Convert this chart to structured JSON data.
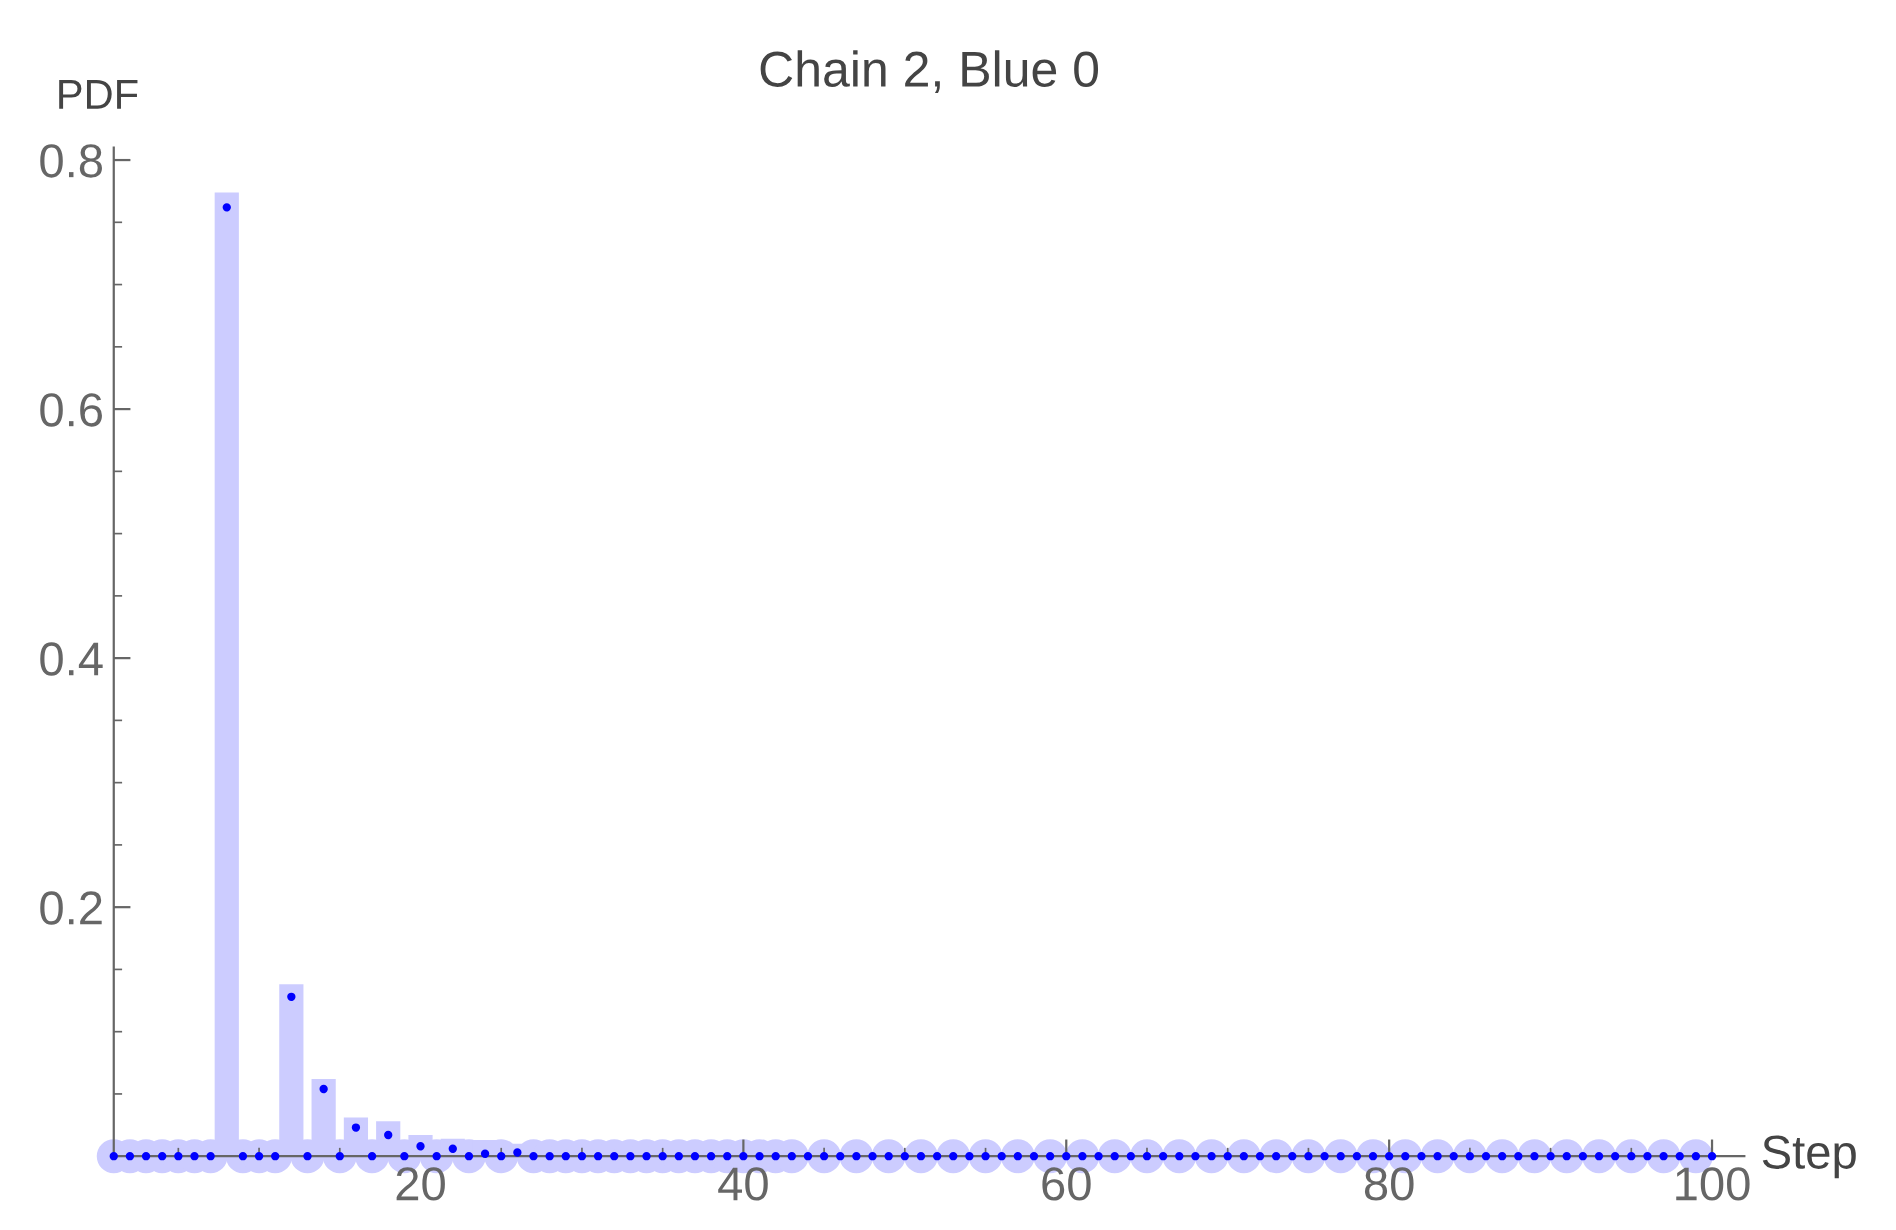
{
  "chart_data": {
    "type": "bar",
    "title": "Chain 2, Blue 0",
    "xlabel": "Step",
    "ylabel": "PDF",
    "xlim": [
      1,
      102
    ],
    "ylim": [
      0,
      0.81
    ],
    "xticks": [
      20,
      40,
      60,
      80,
      100
    ],
    "yticks": [
      0.2,
      0.4,
      0.6,
      0.8
    ],
    "grid": false,
    "legend": false,
    "series": [
      {
        "color": "#ccccff",
        "x": [
          8,
          12,
          14,
          16,
          18,
          20,
          22,
          24,
          26
        ],
        "values": [
          0.774,
          0.138,
          0.062,
          0.031,
          0.028,
          0.017,
          0.014,
          0.013,
          0.01
        ]
      },
      {
        "type": "scatter",
        "color": "#ccccff",
        "marker": "circle",
        "x": [
          1,
          2,
          3,
          4,
          5,
          6,
          7,
          9,
          10,
          11,
          13,
          15,
          17,
          19,
          21,
          23,
          25,
          27,
          28,
          29,
          30,
          31,
          32,
          33,
          34,
          35,
          36,
          37,
          38,
          39,
          40,
          41,
          42,
          43,
          45,
          47,
          49,
          51,
          53,
          55,
          57,
          59,
          61,
          63,
          65,
          67,
          69,
          71,
          73,
          75,
          77,
          79,
          81,
          83,
          85,
          87,
          89,
          91,
          93,
          95,
          97,
          99
        ],
        "values": [
          0,
          0,
          0,
          0,
          0,
          0,
          0,
          0,
          0,
          0,
          0,
          0,
          0,
          0,
          0,
          0,
          0,
          0,
          0,
          0,
          0,
          0,
          0,
          0,
          0,
          0,
          0,
          0,
          0,
          0,
          0,
          0,
          0,
          0,
          0,
          0,
          0,
          0,
          0,
          0,
          0,
          0,
          0,
          0,
          0,
          0,
          0,
          0,
          0,
          0,
          0,
          0,
          0,
          0,
          0,
          0,
          0,
          0,
          0,
          0,
          0,
          0
        ]
      },
      {
        "type": "scatter",
        "color": "#0000ff",
        "marker": "circle",
        "x": [
          1,
          2,
          3,
          4,
          5,
          6,
          7,
          8,
          9,
          10,
          11,
          12,
          13,
          14,
          15,
          16,
          17,
          18,
          19,
          20,
          21,
          22,
          23,
          24,
          25,
          26,
          27,
          28,
          29,
          30,
          31,
          32,
          33,
          34,
          35,
          36,
          37,
          38,
          39,
          40,
          41,
          42,
          43,
          44,
          45,
          46,
          47,
          48,
          49,
          50,
          51,
          52,
          53,
          54,
          55,
          56,
          57,
          58,
          59,
          60,
          61,
          62,
          63,
          64,
          65,
          66,
          67,
          68,
          69,
          70,
          71,
          72,
          73,
          74,
          75,
          76,
          77,
          78,
          79,
          80,
          81,
          82,
          83,
          84,
          85,
          86,
          87,
          88,
          89,
          90,
          91,
          92,
          93,
          94,
          95,
          96,
          97,
          98,
          99,
          100
        ],
        "values": [
          0,
          0,
          0,
          0,
          0,
          0,
          0,
          0.762,
          0,
          0,
          0,
          0.128,
          0,
          0.054,
          0,
          0.023,
          0,
          0.017,
          0,
          0.008,
          0,
          0.006,
          0,
          0.002,
          0,
          0.003,
          0,
          0,
          0,
          0,
          0,
          0,
          0,
          0,
          0,
          0,
          0,
          0,
          0,
          0,
          0,
          0,
          0,
          0,
          0,
          0,
          0,
          0,
          0,
          0,
          0,
          0,
          0,
          0,
          0,
          0,
          0,
          0,
          0,
          0,
          0,
          0,
          0,
          0,
          0,
          0,
          0,
          0,
          0,
          0,
          0,
          0,
          0,
          0,
          0,
          0,
          0,
          0,
          0,
          0,
          0,
          0,
          0,
          0,
          0,
          0,
          0,
          0,
          0,
          0,
          0,
          0,
          0,
          0,
          0,
          0,
          0,
          0,
          0,
          0
        ]
      }
    ]
  }
}
